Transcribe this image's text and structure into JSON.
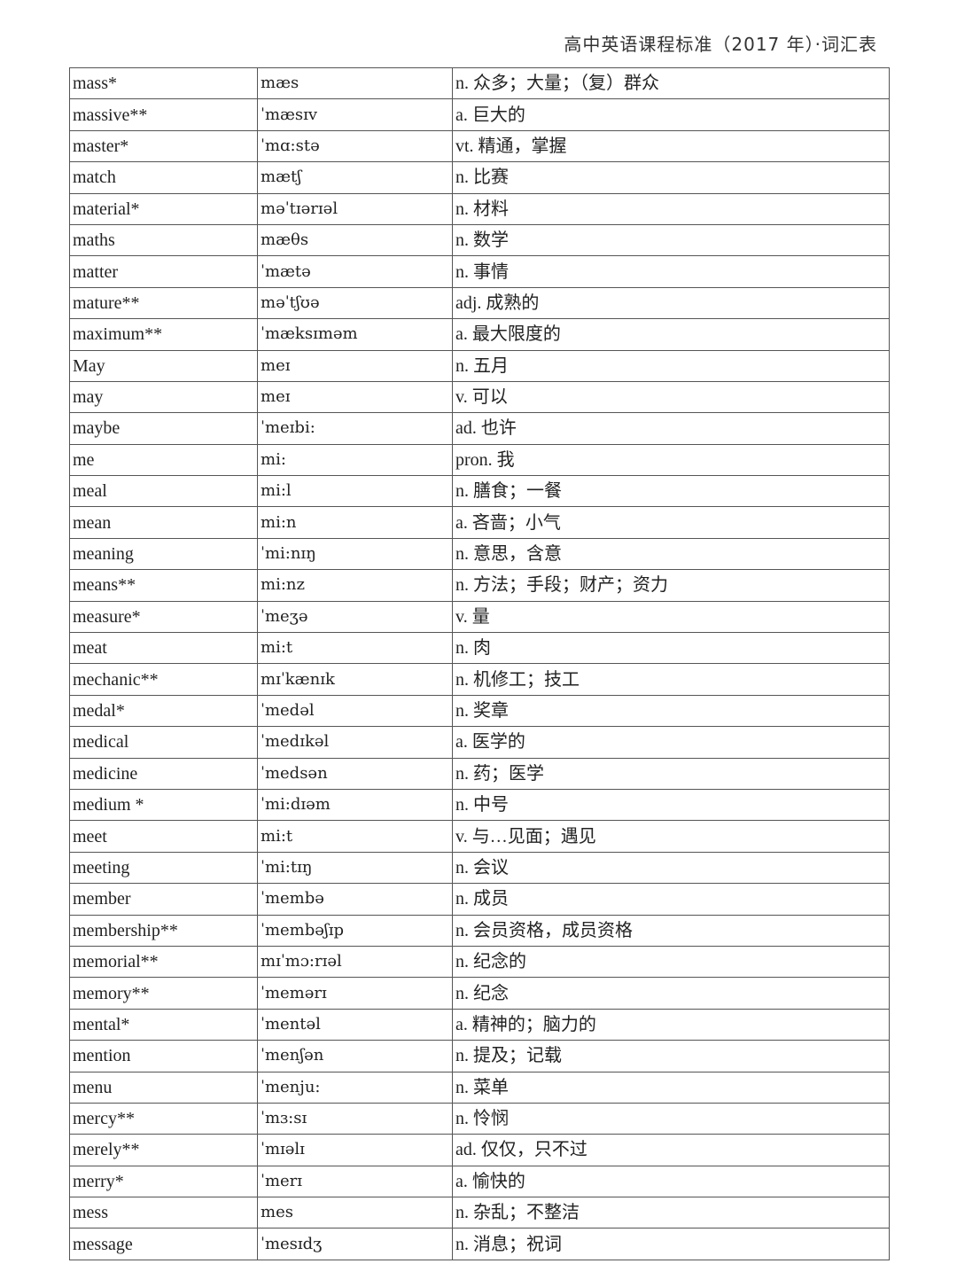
{
  "header": {
    "title": "高中英语课程标准（2017 年）·词汇表"
  },
  "rows": [
    {
      "word": "mass*",
      "phonetic": "mæs",
      "meaning": "n. 众多；大量；（复）群众"
    },
    {
      "word": "massive**",
      "phonetic": "ˈmæsɪv",
      "meaning": "a. 巨大的"
    },
    {
      "word": "master*",
      "phonetic": "ˈmɑ:stə",
      "meaning": "vt. 精通，掌握"
    },
    {
      "word": "match",
      "phonetic": "mætʃ",
      "meaning": "n. 比赛"
    },
    {
      "word": "material*",
      "phonetic": "məˈtɪərɪəl",
      "meaning": "n. 材料"
    },
    {
      "word": "maths",
      "phonetic": "mæθs",
      "meaning": "n. 数学"
    },
    {
      "word": "matter",
      "phonetic": "ˈmætə",
      "meaning": "n. 事情"
    },
    {
      "word": "mature**",
      "phonetic": "məˈtʃʊə",
      "meaning": "adj. 成熟的"
    },
    {
      "word": "maximum**",
      "phonetic": "ˈmæksɪməm",
      "meaning": "a. 最大限度的"
    },
    {
      "word": "May",
      "phonetic": "meɪ",
      "meaning": "n. 五月"
    },
    {
      "word": "may",
      "phonetic": "meɪ",
      "meaning": "v. 可以"
    },
    {
      "word": "maybe",
      "phonetic": "ˈmeɪbi:",
      "meaning": "ad. 也许"
    },
    {
      "word": "me",
      "phonetic": "mi:",
      "meaning": "pron. 我"
    },
    {
      "word": "meal",
      "phonetic": "mi:l",
      "meaning": "n. 膳食；一餐"
    },
    {
      "word": "mean",
      "phonetic": "mi:n",
      "meaning": "a. 吝啬；小气"
    },
    {
      "word": "meaning",
      "phonetic": "ˈmi:nɪŋ",
      "meaning": "n. 意思，含意"
    },
    {
      "word": "means**",
      "phonetic": "mi:nz",
      "meaning": "n. 方法；手段；财产；资力"
    },
    {
      "word": "measure*",
      "phonetic": "ˈmeʒə",
      "meaning": "v. 量"
    },
    {
      "word": "meat",
      "phonetic": "mi:t",
      "meaning": "n. 肉"
    },
    {
      "word": "mechanic**",
      "phonetic": "mɪˈkænɪk",
      "meaning": "n. 机修工；技工"
    },
    {
      "word": "medal*",
      "phonetic": "ˈmedəl",
      "meaning": "n. 奖章"
    },
    {
      "word": "medical",
      "phonetic": "ˈmedɪkəl",
      "meaning": "a. 医学的"
    },
    {
      "word": "medicine",
      "phonetic": "ˈmedsən",
      "meaning": "n. 药；医学"
    },
    {
      "word": "medium *",
      "phonetic": "ˈmi:dɪəm",
      "meaning": "n. 中号"
    },
    {
      "word": "meet",
      "phonetic": "mi:t",
      "meaning": "v. 与…见面；遇见"
    },
    {
      "word": "meeting",
      "phonetic": "ˈmi:tɪŋ",
      "meaning": "n. 会议"
    },
    {
      "word": "member",
      "phonetic": "ˈmembə",
      "meaning": "n. 成员"
    },
    {
      "word": "membership**",
      "phonetic": "ˈmembəʃɪp",
      "meaning": "n. 会员资格，成员资格"
    },
    {
      "word": "memorial**",
      "phonetic": "mɪˈmɔ:rɪəl",
      "meaning": "n. 纪念的"
    },
    {
      "word": "memory**",
      "phonetic": "ˈmemərɪ",
      "meaning": "n. 纪念"
    },
    {
      "word": "mental*",
      "phonetic": "ˈmentəl",
      "meaning": "a. 精神的；脑力的"
    },
    {
      "word": "mention",
      "phonetic": "ˈmenʃən",
      "meaning": "n. 提及；记载"
    },
    {
      "word": "menu",
      "phonetic": "ˈmenju:",
      "meaning": "n. 菜单"
    },
    {
      "word": "mercy**",
      "phonetic": "ˈmɜ:sɪ",
      "meaning": "n. 怜悯"
    },
    {
      "word": "merely**",
      "phonetic": "ˈmɪəlɪ",
      "meaning": "ad. 仅仅，只不过"
    },
    {
      "word": "merry*",
      "phonetic": "ˈmerɪ",
      "meaning": "a. 愉快的"
    },
    {
      "word": "mess",
      "phonetic": "mes",
      "meaning": "n. 杂乱；不整洁"
    },
    {
      "word": "message",
      "phonetic": "ˈmesɪdʒ",
      "meaning": "n. 消息；祝词"
    }
  ]
}
